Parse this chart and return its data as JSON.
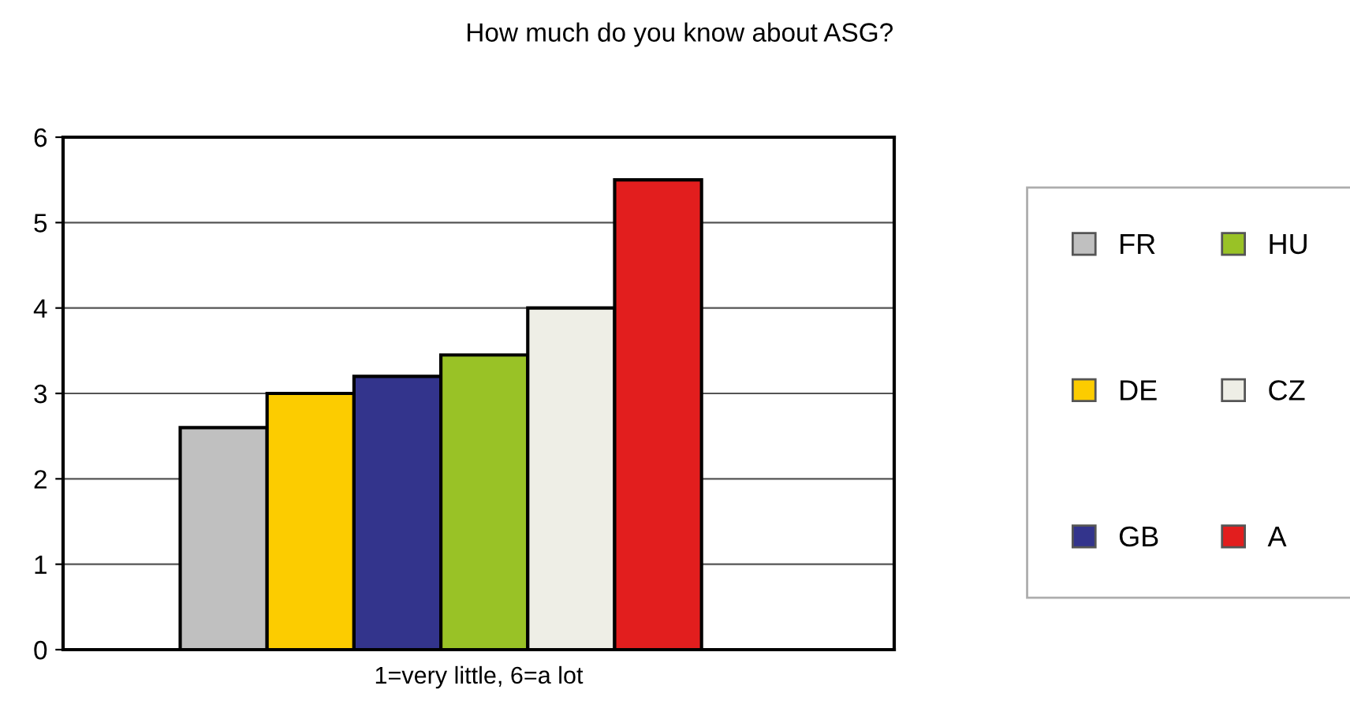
{
  "chart_data": {
    "type": "bar",
    "title": "How much do you know about ASG?",
    "xlabel": "1=very little, 6=a lot",
    "categories": [
      null
    ],
    "series": [
      {
        "name": "FR",
        "color": "#c0c0c0",
        "values": [
          2.6
        ]
      },
      {
        "name": "DE",
        "color": "#fccc00",
        "values": [
          3.0
        ]
      },
      {
        "name": "GB",
        "color": "#33348c",
        "values": [
          3.2
        ]
      },
      {
        "name": "HU",
        "color": "#99c226",
        "values": [
          3.45
        ]
      },
      {
        "name": "CZ",
        "color": "#eeeee6",
        "values": [
          4.0
        ]
      },
      {
        "name": "A",
        "color": "#e21e1e",
        "values": [
          5.5
        ]
      }
    ],
    "ylim": [
      0,
      6
    ],
    "yticks": [
      0,
      1,
      2,
      3,
      4,
      5,
      6
    ],
    "grid": "y",
    "legend": "right"
  }
}
